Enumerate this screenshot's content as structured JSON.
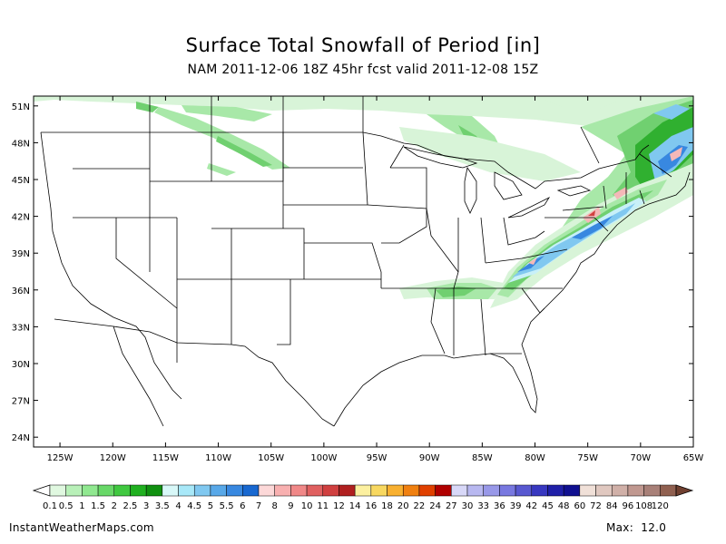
{
  "title": "Surface Total Snowfall of Period [in]",
  "subtitle": "NAM 2011-12-06 18Z 45hr fcst valid 2011-12-08 15Z",
  "footer": {
    "site": "InstantWeatherMaps.com",
    "max_label": "Max:",
    "max_value": "12.0"
  },
  "map": {
    "lat_labels": [
      "51N",
      "48N",
      "45N",
      "42N",
      "39N",
      "36N",
      "33N",
      "30N",
      "27N",
      "24N"
    ],
    "lat_values": [
      51,
      48,
      45,
      42,
      39,
      36,
      33,
      30,
      27,
      24
    ],
    "lon_labels": [
      "125W",
      "120W",
      "115W",
      "110W",
      "105W",
      "100W",
      "95W",
      "90W",
      "85W",
      "80W",
      "75W",
      "70W",
      "65W"
    ],
    "lon_values": [
      -125,
      -120,
      -115,
      -110,
      -105,
      -100,
      -95,
      -90,
      -85,
      -80,
      -75,
      -70,
      -65
    ]
  },
  "legend": {
    "labels": [
      "0.1",
      "0.5",
      "1",
      "1.5",
      "2",
      "2.5",
      "3",
      "3.5",
      "4",
      "4.5",
      "5",
      "5.5",
      "6",
      "7",
      "8",
      "9",
      "10",
      "11",
      "12",
      "14",
      "16",
      "18",
      "20",
      "22",
      "24",
      "27",
      "30",
      "33",
      "36",
      "39",
      "42",
      "45",
      "48",
      "60",
      "72",
      "84",
      "96",
      "108",
      "120"
    ],
    "colors": [
      "#e0f8e0",
      "#b8f0b8",
      "#90e890",
      "#68d868",
      "#40c840",
      "#20b020",
      "#109010",
      "#d8f8f8",
      "#a8e8f8",
      "#80c8f0",
      "#58a8e8",
      "#3888e0",
      "#1868d0",
      "#fcd8d8",
      "#f8b0b0",
      "#f08888",
      "#e06060",
      "#d04040",
      "#b02020",
      "#fcf0a0",
      "#f8d860",
      "#f8b030",
      "#f08010",
      "#e04000",
      "#b00000",
      "#d8d8f8",
      "#b8b8f0",
      "#9898e8",
      "#7878e0",
      "#5858d0",
      "#3838c0",
      "#2020a8",
      "#101090",
      "#f0e0d8",
      "#e0c8c0",
      "#d0b0a8",
      "#c09890",
      "#a88078",
      "#906050"
    ],
    "under_color": "#ffffff",
    "over_color": "#704030"
  },
  "snow_colors": {
    "light": "#d8f4d8",
    "green1": "#a8e8a8",
    "green2": "#70d070",
    "green3": "#30b030",
    "green4": "#109010",
    "blue1": "#c8f0f8",
    "blue2": "#80c8f0",
    "blue3": "#3888e0",
    "blue4": "#1868d0",
    "pink": "#f4b8b8",
    "red": "#d04040"
  }
}
